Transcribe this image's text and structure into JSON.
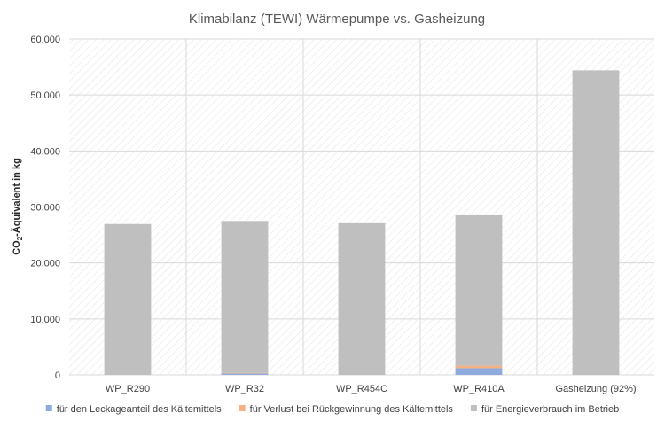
{
  "chart_data": {
    "type": "bar",
    "stacked": true,
    "title": "Klimabilanz (TEWI) Wärmepumpe vs. Gasheizung",
    "ylabel_main": "CO",
    "ylabel_sub": "2",
    "ylabel_rest": "-Äquivalent in kg",
    "xlabel": "",
    "ylim": [
      0,
      60000
    ],
    "yticks": [
      0,
      10000,
      20000,
      30000,
      40000,
      50000,
      60000
    ],
    "ytick_labels": [
      "0",
      "10.000",
      "20.000",
      "30.000",
      "40.000",
      "50.000",
      "60.000"
    ],
    "categories": [
      "WP_R290",
      "WP_R32",
      "WP_R454C",
      "WP_R410A",
      "Gasheizung (92%)"
    ],
    "grid": true,
    "legend_position": "bottom",
    "series": [
      {
        "name": "für den Leckageanteil des Kältemittels",
        "color": "#8faadc",
        "values": [
          10,
          250,
          50,
          1200,
          0
        ]
      },
      {
        "name": "für Verlust bei Rückgewinnung des Kältemittels",
        "color": "#f4b183",
        "values": [
          5,
          100,
          30,
          450,
          0
        ]
      },
      {
        "name": "für Energieverbrauch im Betrieb",
        "color": "#bfbfbf",
        "values": [
          26935,
          27150,
          27020,
          26850,
          54400
        ]
      }
    ]
  }
}
